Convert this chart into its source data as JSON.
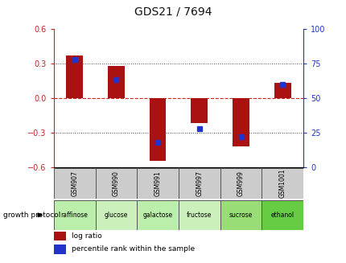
{
  "title": "GDS21 / 7694",
  "samples": [
    "GSM907",
    "GSM990",
    "GSM991",
    "GSM997",
    "GSM999",
    "GSM1001"
  ],
  "conditions": [
    "raffinose",
    "glucose",
    "galactose",
    "fructose",
    "sucrose",
    "ethanol"
  ],
  "log_ratios": [
    0.37,
    0.28,
    -0.55,
    -0.22,
    -0.42,
    0.13
  ],
  "percentile_ranks": [
    78,
    63,
    18,
    28,
    22,
    60
  ],
  "ylim_left": [
    -0.6,
    0.6
  ],
  "ylim_right": [
    0,
    100
  ],
  "yticks_left": [
    -0.6,
    -0.3,
    0.0,
    0.3,
    0.6
  ],
  "yticks_right": [
    0,
    25,
    50,
    75,
    100
  ],
  "bar_color": "#aa1111",
  "percentile_color": "#2233cc",
  "hline_color": "#cc2222",
  "dotted_color": "#444444",
  "bg_color": "#ffffff",
  "plot_bg": "#ffffff",
  "sample_bg": "#cccccc",
  "condition_bg_colors": [
    "#bbeeaa",
    "#ccf0bb",
    "#bbeeaa",
    "#ccf0bb",
    "#99dd77",
    "#66cc44"
  ],
  "title_color": "#111111",
  "left_tick_color": "#cc2222",
  "right_tick_color": "#2233cc",
  "growth_protocol_text": "growth protocol",
  "legend_label_red": "log ratio",
  "legend_label_blue": "percentile rank within the sample"
}
